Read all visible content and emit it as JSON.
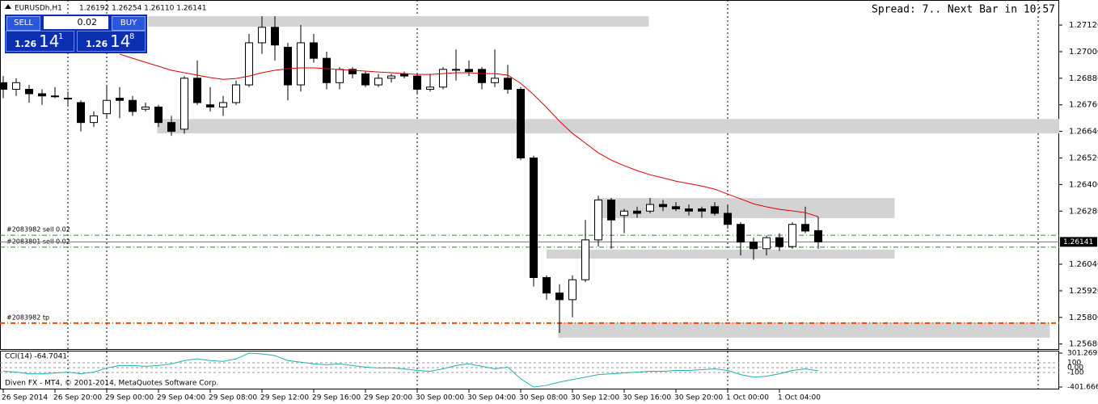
{
  "header": {
    "symbol": "EURUSDh,H1",
    "quote": "1.26192 1.26254 1.26110 1.26141",
    "status": "Spread: 7.. Next Bar in 10:57"
  },
  "trade_panel": {
    "sell": "SELL",
    "buy": "BUY",
    "lots": "0.02",
    "sell_price": [
      "1.26",
      "14",
      "1"
    ],
    "buy_price": [
      "1.26",
      "14",
      "8"
    ]
  },
  "footer": "Diven FX - MT4, © 2001-2014, MetaQuotes Software Corp.",
  "chart_data": [
    {
      "type": "candlestick",
      "categories": [
        "26 Sep 2014",
        null,
        null,
        null,
        "26 Sep 20:00",
        null,
        null,
        null,
        "29 Sep 00:00",
        null,
        null,
        null,
        "29 Sep 04:00",
        null,
        null,
        null,
        "29 Sep 08:00",
        null,
        null,
        null,
        "29 Sep 12:00",
        null,
        null,
        null,
        "29 Sep 16:00",
        null,
        null,
        null,
        "29 Sep 20:00",
        null,
        null,
        null,
        "30 Sep 00:00",
        null,
        null,
        null,
        "30 Sep 04:00",
        null,
        null,
        null,
        "30 Sep 08:00",
        null,
        null,
        null,
        "30 Sep 12:00",
        null,
        null,
        null,
        "30 Sep 16:00",
        null,
        null,
        null,
        "30 Sep 20:00",
        null,
        null,
        null,
        "1 Oct 00:00",
        null,
        null,
        null,
        "1 Oct 04:00",
        null,
        null,
        null
      ],
      "ohlc": {
        "open": [
          1.2686,
          1.2683,
          1.2683,
          1.2681,
          1.268,
          1.2679,
          1.2677,
          1.2668,
          1.2672,
          1.2679,
          1.2678,
          1.2674,
          1.2675,
          1.2668,
          1.2665,
          1.2688,
          1.2676,
          1.2675,
          1.2677,
          1.2685,
          1.2704,
          1.2711,
          1.2702,
          1.2685,
          1.2704,
          1.2697,
          1.2686,
          1.2692,
          1.269,
          1.2685,
          1.2688,
          1.269,
          1.2689,
          1.2683,
          1.2684,
          1.2692,
          1.2692,
          1.2692,
          1.2686,
          1.2688,
          1.2683,
          1.2652,
          1.2598,
          1.2591,
          1.2588,
          1.2597,
          1.2615,
          1.2633,
          1.2626,
          1.2628,
          1.2628,
          1.2631,
          1.263,
          1.2629,
          1.2629,
          1.263,
          1.2627,
          1.2622,
          1.2614,
          1.2611,
          1.2616,
          1.2612,
          1.2622,
          1.26192
        ],
        "high": [
          1.2689,
          1.2688,
          1.2685,
          1.2683,
          1.2684,
          1.2682,
          1.2678,
          1.2673,
          1.2685,
          1.2684,
          1.268,
          1.2677,
          1.2676,
          1.2671,
          1.2689,
          1.2696,
          1.2684,
          1.268,
          1.2687,
          1.2708,
          1.2716,
          1.2716,
          1.2704,
          1.2712,
          1.2708,
          1.27,
          1.2693,
          1.2693,
          1.2691,
          1.269,
          1.269,
          1.2691,
          1.269,
          1.269,
          1.2693,
          1.2701,
          1.2696,
          1.2693,
          1.2701,
          1.2694,
          1.2684,
          1.2653,
          1.2599,
          1.2595,
          1.2599,
          1.2624,
          1.2635,
          1.2634,
          1.2629,
          1.263,
          1.2634,
          1.2633,
          1.2632,
          1.2631,
          1.263,
          1.2632,
          1.2631,
          1.2623,
          1.2616,
          1.2617,
          1.2618,
          1.2623,
          1.263,
          1.26254
        ],
        "low": [
          1.2679,
          1.268,
          1.2677,
          1.2676,
          1.2679,
          1.2676,
          1.2664,
          1.2666,
          1.267,
          1.267,
          1.2671,
          1.2673,
          1.2666,
          1.2662,
          1.2663,
          1.2676,
          1.2673,
          1.2671,
          1.2676,
          1.2684,
          1.2699,
          1.2696,
          1.2678,
          1.2682,
          1.2695,
          1.2683,
          1.2683,
          1.2688,
          1.2684,
          1.2684,
          1.2686,
          1.2688,
          1.2681,
          1.2682,
          1.2683,
          1.2687,
          1.2689,
          1.2683,
          1.2684,
          1.2681,
          1.2651,
          1.2594,
          1.2588,
          1.2573,
          1.258,
          1.2596,
          1.2612,
          1.2611,
          1.2618,
          1.2625,
          1.2627,
          1.2628,
          1.2628,
          1.2626,
          1.2625,
          1.2626,
          1.262,
          1.2608,
          1.2606,
          1.2608,
          1.261,
          1.2611,
          1.2618,
          1.2611
        ],
        "close": [
          1.2683,
          1.2686,
          1.2681,
          1.268,
          1.268,
          1.2679,
          1.2668,
          1.2671,
          1.2678,
          1.2678,
          1.2673,
          1.2675,
          1.2668,
          1.2664,
          1.2688,
          1.2677,
          1.2675,
          1.2677,
          1.2685,
          1.2704,
          1.2711,
          1.2703,
          1.2685,
          1.2704,
          1.2697,
          1.2686,
          1.2692,
          1.269,
          1.2685,
          1.2688,
          1.2689,
          1.2689,
          1.2683,
          1.2684,
          1.2692,
          1.2692,
          1.2691,
          1.2686,
          1.2688,
          1.2683,
          1.2652,
          1.2598,
          1.2591,
          1.2588,
          1.2597,
          1.2615,
          1.2633,
          1.2624,
          1.2628,
          1.2627,
          1.2631,
          1.263,
          1.2629,
          1.2628,
          1.2628,
          1.2627,
          1.2622,
          1.2614,
          1.2611,
          1.2616,
          1.2612,
          1.2622,
          1.2619,
          1.26141
        ]
      },
      "ma": {
        "color": "#e00000",
        "values": [
          null,
          null,
          null,
          null,
          null,
          null,
          null,
          null,
          null,
          1.26989,
          1.2697,
          1.26952,
          1.26934,
          1.26916,
          1.26905,
          1.26894,
          1.26883,
          1.26875,
          1.26879,
          1.2689,
          1.26905,
          1.26916,
          1.26923,
          1.26927,
          1.26927,
          1.26923,
          1.26919,
          1.26916,
          1.26912,
          1.26908,
          1.26905,
          1.26901,
          1.26897,
          1.26897,
          1.26901,
          1.26905,
          1.26905,
          1.26901,
          1.26901,
          1.26894,
          1.26857,
          1.26806,
          1.26748,
          1.26686,
          1.26631,
          1.26587,
          1.26543,
          1.2651,
          1.26485,
          1.26463,
          1.26444,
          1.2643,
          1.26415,
          1.26404,
          1.26393,
          1.26379,
          1.26357,
          1.26335,
          1.26313,
          1.26299,
          1.26288,
          1.26281,
          1.26273,
          1.26255
        ]
      },
      "zones": [
        {
          "x": [
            11.2,
            49.9
          ],
          "y": [
            1.27113,
            1.2716
          ]
        },
        {
          "x": [
            11.9,
            81.8
          ],
          "y": [
            1.26631,
            1.26696
          ]
        },
        {
          "x": [
            46,
            68.9
          ],
          "y": [
            1.26248,
            1.26339
          ]
        },
        {
          "x": [
            42,
            68.9
          ],
          "y": [
            1.26066,
            1.26106
          ]
        },
        {
          "x": [
            42.9,
            80.9
          ],
          "y": [
            1.25708,
            1.25777
          ]
        }
      ],
      "levels": [
        {
          "label": "#2083982 sell 0.02",
          "value": 1.26171,
          "color": "#2e8b2e"
        },
        {
          "label": "#2083801 sell 0.02",
          "value": 1.26117,
          "color": "#2e8b2e"
        },
        {
          "label": "#2083982 tp",
          "value": 1.25774,
          "color": "#ff4500"
        }
      ],
      "bid": {
        "value": 1.26141
      },
      "xlim": [
        -0.25,
        81.625
      ],
      "ylim": [
        1.25657,
        1.27226
      ],
      "yticks": [
        {
          "value": 1.2712,
          "label": "1.27120"
        },
        {
          "value": 1.27,
          "label": "1.27000"
        },
        {
          "value": 1.2688,
          "label": "1.26880"
        },
        {
          "value": 1.2676,
          "label": "1.26760"
        },
        {
          "value": 1.2664,
          "label": "1.26640"
        },
        {
          "value": 1.2652,
          "label": "1.26520"
        },
        {
          "value": 1.264,
          "label": "1.26400"
        },
        {
          "value": 1.2628,
          "label": "1.26280"
        },
        {
          "value": 1.2604,
          "label": "1.26040"
        },
        {
          "value": 1.2592,
          "label": "1.25920"
        },
        {
          "value": 1.258,
          "label": "1.25800"
        },
        {
          "value": 1.2568,
          "label": "1.25680"
        }
      ]
    },
    {
      "type": "line",
      "title": "CCI(14) -64.7041",
      "color": "#20b2aa",
      "values": [
        -75.8,
        -92.9,
        -127.2,
        -127.2,
        -110.1,
        -92.9,
        -127.2,
        -92.9,
        -7.3,
        44.2,
        44.2,
        27.0,
        44.2,
        78.4,
        147.0,
        181.3,
        147.0,
        129.9,
        181.3,
        301.27,
        284.1,
        249.9,
        147.0,
        112.7,
        78.4,
        61.3,
        78.4,
        44.2,
        9.9,
        -7.3,
        -7.3,
        -24.4,
        -58.7,
        -75.8,
        -24.4,
        44.2,
        78.4,
        27.0,
        -24.4,
        9.9,
        -230.1,
        -401.67,
        -367.2,
        -298.6,
        -247.2,
        -195.8,
        -144.4,
        -127.2,
        -110.1,
        -92.9,
        -75.8,
        -75.8,
        -58.7,
        -58.7,
        -41.5,
        -24.4,
        -58.7,
        -144.4,
        -195.8,
        -178.6,
        -127.2,
        -58.7,
        -24.4,
        -64.7
      ],
      "ylim": [
        -401.6661,
        301.2692
      ],
      "yticks": [
        301.2692,
        100,
        {
          "value": 0,
          "label": "0.00"
        },
        -100,
        -401.6661
      ]
    }
  ]
}
